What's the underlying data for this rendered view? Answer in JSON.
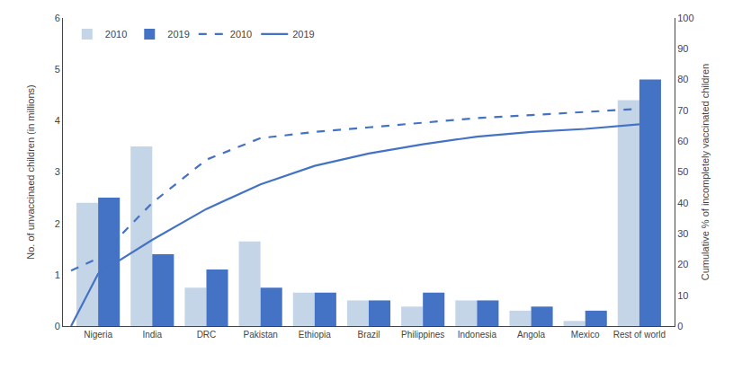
{
  "chart_data": {
    "type": "bar",
    "categories": [
      "Nigeria",
      "India",
      "DRC",
      "Pakistan",
      "Ethiopia",
      "Brazil",
      "Philippines",
      "Indonesia",
      "Angola",
      "Mexico",
      "Rest of world"
    ],
    "series": [
      {
        "name": "2010",
        "type": "bar",
        "color": "#c5d5e8",
        "values": [
          2.4,
          3.5,
          0.75,
          1.65,
          0.65,
          0.5,
          0.38,
          0.5,
          0.3,
          0.1,
          4.4
        ]
      },
      {
        "name": "2019",
        "type": "bar",
        "color": "#4472c4",
        "values": [
          2.5,
          1.4,
          1.1,
          0.75,
          0.65,
          0.5,
          0.65,
          0.5,
          0.38,
          0.3,
          4.8
        ]
      },
      {
        "name": "2010",
        "type": "line",
        "axis": "y2",
        "color": "#4472c4",
        "line_style": "dashed",
        "x": [
          -0.5,
          0,
          1,
          2,
          3,
          4,
          5,
          6,
          7,
          8,
          9,
          10
        ],
        "values": [
          18,
          22,
          40,
          54,
          61,
          63,
          64.5,
          66,
          67.5,
          68.5,
          69.5,
          70.5
        ]
      },
      {
        "name": "2019",
        "type": "line",
        "axis": "y2",
        "color": "#4472c4",
        "line_style": "solid",
        "x": [
          -0.5,
          0,
          1,
          2,
          3,
          4,
          5,
          6,
          7,
          8,
          9,
          10
        ],
        "values": [
          0,
          17,
          28,
          38,
          46,
          52,
          56,
          59,
          61.5,
          63,
          64,
          65.5
        ]
      }
    ],
    "ylabel": "No. of unvaccinaed children (in millions)",
    "y2label": "Cumulative % of incompletely vaccinated children",
    "xlim": [
      -0.65,
      10.65
    ],
    "ylim": [
      0,
      6
    ],
    "yticks": [
      0,
      1,
      2,
      3,
      4,
      5,
      6
    ],
    "y2lim": [
      0,
      100
    ],
    "y2ticks": [
      0,
      10,
      20,
      30,
      40,
      50,
      60,
      70,
      80,
      90,
      100
    ],
    "grid": false,
    "legend": "upper left"
  }
}
